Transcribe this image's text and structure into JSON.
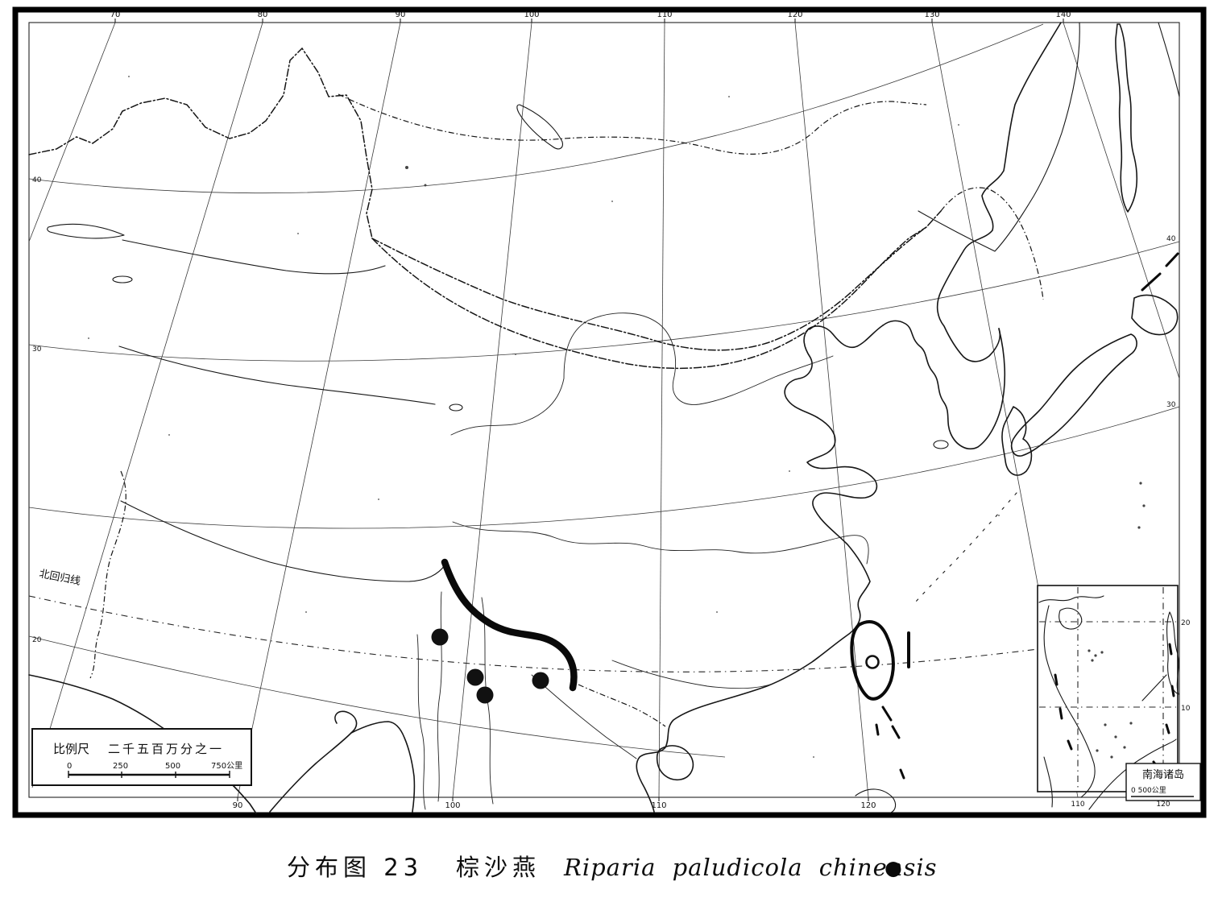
{
  "caption": {
    "map_no": "分布图 23",
    "cn_name": "棕沙燕",
    "sci_name": "Riparia paludicola chinensis",
    "marker_glyph": "●"
  },
  "scale_box": {
    "label": "比例尺",
    "ratio": "二千五百万分之一",
    "tick0": "0",
    "tick1": "250",
    "tick2": "500",
    "tick3": "750公里"
  },
  "graticule": {
    "top": [
      "70",
      "80",
      "90",
      "100",
      "110",
      "120",
      "130",
      "140"
    ],
    "bottom": [
      "90",
      "100",
      "110",
      "120"
    ],
    "left": [
      "40",
      "30",
      "20"
    ],
    "right": [
      "40",
      "30"
    ],
    "tropic_label": "北回归线"
  },
  "inset": {
    "title": "南海诸岛",
    "scale_text": "0    500公里",
    "bottom_labels": [
      "110",
      "120"
    ],
    "right_labels": [
      "20",
      "10"
    ]
  },
  "records": {
    "filled_dots": [
      [
        546,
        791
      ],
      [
        590,
        841
      ],
      [
        602,
        863
      ],
      [
        671,
        845
      ]
    ],
    "filled_radius": 10.5,
    "open_circle": [
      1083,
      822
    ],
    "open_radius": 7.5
  },
  "colors": {
    "ink": "#111111",
    "paper": "#ffffff"
  }
}
